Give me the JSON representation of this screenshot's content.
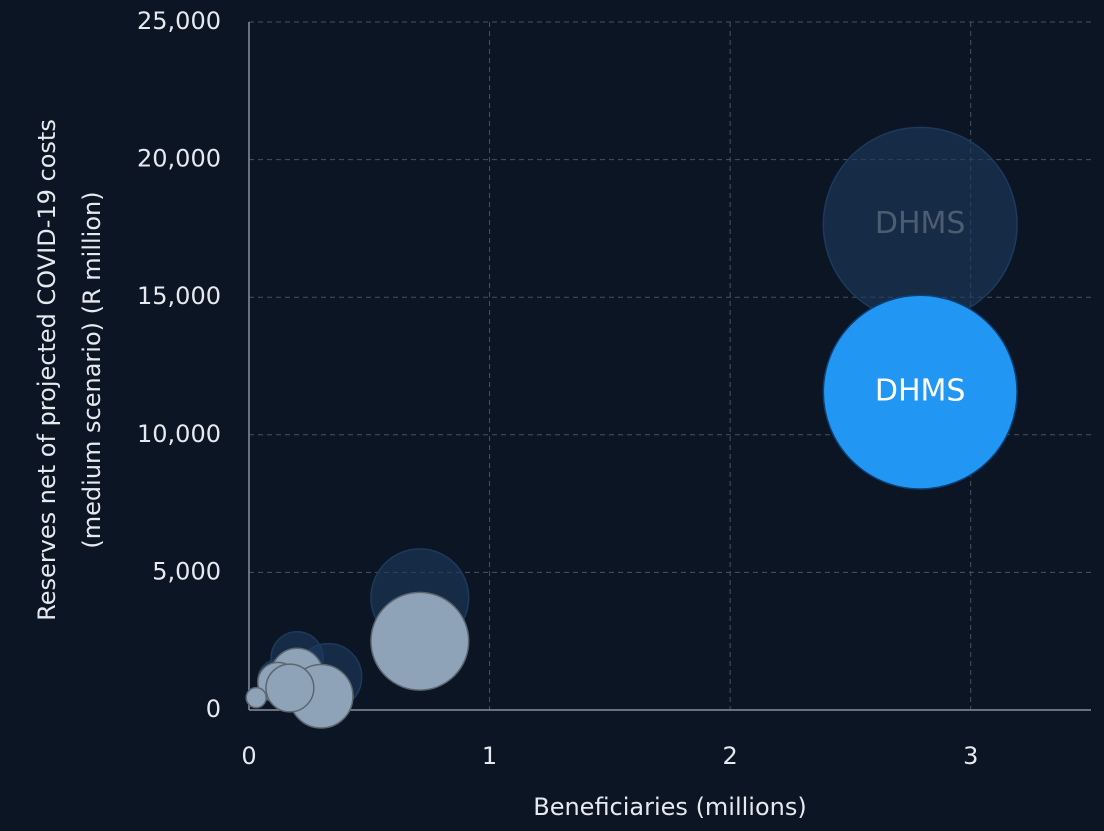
{
  "chart_data": {
    "type": "scatter",
    "xlabel": "Beneficiaries (millions)",
    "ylabel": [
      "Reserves net of projected COVID-19 costs",
      "(medium scenario)  (R million)"
    ],
    "xlim": [
      0,
      3.5
    ],
    "xticks": [
      0,
      1,
      2,
      3
    ],
    "ylim": [
      0,
      25000
    ],
    "yticks": [
      0,
      {
        "value": 5000,
        "label": "5,000"
      },
      {
        "value": 10000,
        "label": "10,000"
      },
      {
        "value": 15000,
        "label": "15,000"
      },
      {
        "value": 20000,
        "label": "20,000"
      },
      {
        "value": 25000,
        "label": "25,000"
      }
    ],
    "grid": true,
    "series": [
      {
        "color": "#1d3a5e",
        "opacity": 0.6,
        "label_color": "#4d5d70",
        "x": [
          2.79,
          0.71,
          0.2,
          0.33,
          0.12
        ],
        "values": [
          17650,
          4080,
          1900,
          1200,
          1100
        ],
        "labels": [
          "DHMS",
          null,
          null,
          null,
          null
        ]
      },
      {
        "color": "#8fa3b8",
        "opacity": 1,
        "label_color": "#ffffff",
        "highlight_color": "#2196f3",
        "x": [
          2.79,
          0.71,
          0.2,
          0.12,
          0.3,
          0.03,
          0.17
        ],
        "values": [
          11550,
          2500,
          1300,
          1000,
          500,
          450,
          800
        ],
        "labels": [
          "DHMS",
          null,
          null,
          null,
          null,
          null,
          null
        ]
      }
    ]
  }
}
